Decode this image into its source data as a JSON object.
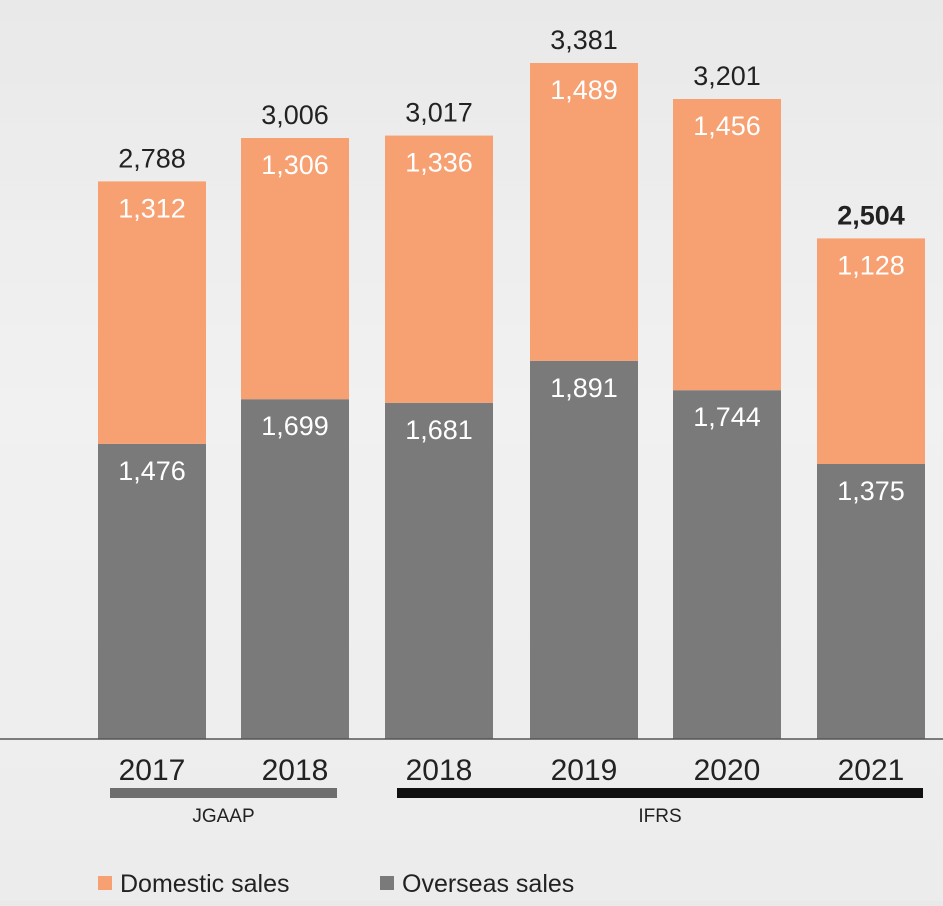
{
  "chart_data": {
    "type": "bar",
    "stacked": true,
    "categories": [
      "2017",
      "2018",
      "2018",
      "2019",
      "2020",
      "2021"
    ],
    "series": [
      {
        "name": "Overseas sales",
        "values": [
          1476,
          1699,
          1681,
          1891,
          1744,
          1375
        ],
        "color": "#7a7a7a"
      },
      {
        "name": "Domestic sales",
        "values": [
          1312,
          1306,
          1336,
          1489,
          1456,
          1128
        ],
        "color": "#f7a072"
      }
    ],
    "totals": [
      2788,
      3006,
      3017,
      3381,
      3201,
      2504
    ],
    "total_labels": [
      "2,788",
      "3,006",
      "3,017",
      "3,381",
      "3,201",
      "2,504"
    ],
    "segment_labels": {
      "Overseas sales": [
        "1,476",
        "1,699",
        "1,681",
        "1,891",
        "1,744",
        "1,375"
      ],
      "Domestic sales": [
        "1,312",
        "1,306",
        "1,336",
        "1,489",
        "1,456",
        "1,128"
      ]
    },
    "groups": [
      {
        "label": "JGAAP",
        "categories": [
          0,
          1
        ],
        "color": "#6e6e6e"
      },
      {
        "label": "IFRS",
        "categories": [
          2,
          3,
          4,
          5
        ],
        "color": "#111111"
      }
    ],
    "legend": [
      "Domestic sales",
      "Overseas sales"
    ],
    "legend_position": "bottom",
    "ylim": [
      0,
      3600
    ],
    "grid": false
  }
}
